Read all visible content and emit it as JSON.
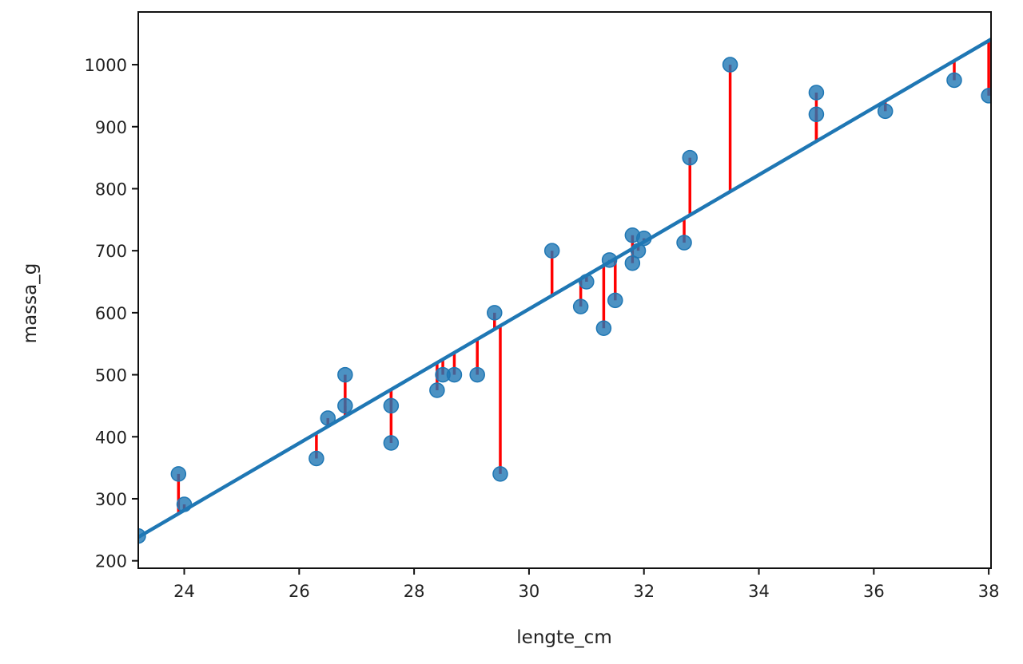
{
  "chart_data": {
    "type": "scatter",
    "title": "",
    "xlabel": "lengte_cm",
    "ylabel": "massa_g",
    "xlim": [
      23.2,
      38.04
    ],
    "ylim": [
      188,
      1085
    ],
    "xticks": [
      24,
      26,
      28,
      30,
      32,
      34,
      36,
      38
    ],
    "yticks": [
      200,
      300,
      400,
      500,
      600,
      700,
      800,
      900,
      1000
    ],
    "grid": false,
    "point_color": "#1f77b4",
    "line_color": "#1f77b4",
    "residual_color": "#ff0000",
    "fit_line": {
      "slope": 54.1,
      "intercept": -1017
    },
    "points": [
      {
        "x": 23.2,
        "y": 240
      },
      {
        "x": 23.9,
        "y": 340
      },
      {
        "x": 24.0,
        "y": 291
      },
      {
        "x": 26.3,
        "y": 365
      },
      {
        "x": 26.5,
        "y": 430
      },
      {
        "x": 26.8,
        "y": 450
      },
      {
        "x": 26.8,
        "y": 500
      },
      {
        "x": 27.6,
        "y": 450
      },
      {
        "x": 27.6,
        "y": 390
      },
      {
        "x": 28.4,
        "y": 475
      },
      {
        "x": 28.5,
        "y": 500
      },
      {
        "x": 28.7,
        "y": 500
      },
      {
        "x": 29.1,
        "y": 500
      },
      {
        "x": 29.4,
        "y": 600
      },
      {
        "x": 29.5,
        "y": 340
      },
      {
        "x": 30.4,
        "y": 700
      },
      {
        "x": 30.9,
        "y": 610
      },
      {
        "x": 31.0,
        "y": 650
      },
      {
        "x": 31.3,
        "y": 575
      },
      {
        "x": 31.4,
        "y": 685
      },
      {
        "x": 31.5,
        "y": 620
      },
      {
        "x": 31.8,
        "y": 725
      },
      {
        "x": 31.8,
        "y": 680
      },
      {
        "x": 31.9,
        "y": 700
      },
      {
        "x": 32.0,
        "y": 720
      },
      {
        "x": 32.7,
        "y": 713
      },
      {
        "x": 32.8,
        "y": 850
      },
      {
        "x": 33.5,
        "y": 1000
      },
      {
        "x": 35.0,
        "y": 955
      },
      {
        "x": 35.0,
        "y": 920
      },
      {
        "x": 36.2,
        "y": 925
      },
      {
        "x": 37.4,
        "y": 975
      },
      {
        "x": 38.0,
        "y": 950
      }
    ]
  }
}
